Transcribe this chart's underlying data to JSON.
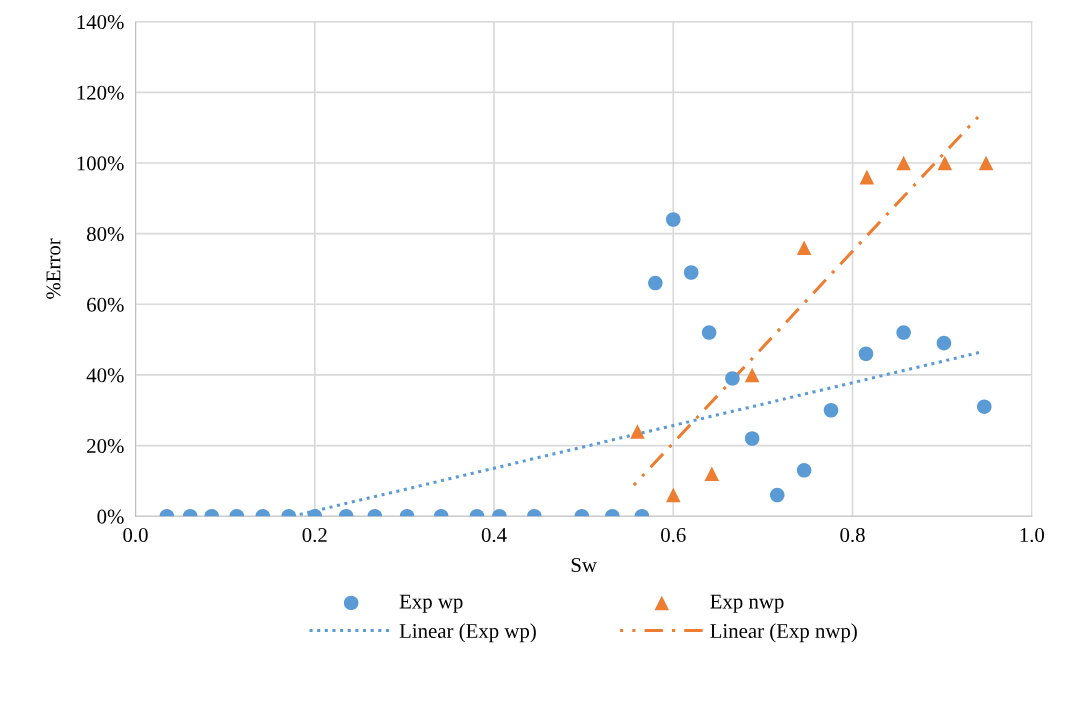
{
  "chart_data": {
    "type": "scatter",
    "xlabel": "Sw",
    "ylabel": "%Error",
    "xlim": [
      0,
      1
    ],
    "xticks": [
      {
        "value": 0,
        "label": "0.0"
      },
      {
        "value": 0.2,
        "label": "0.2"
      },
      {
        "value": 0.4,
        "label": "0.4"
      },
      {
        "value": 0.6,
        "label": "0.6"
      },
      {
        "value": 0.8,
        "label": "0.8"
      },
      {
        "value": 1,
        "label": "1.0"
      }
    ],
    "ylim": [
      0,
      140
    ],
    "yticks": [
      {
        "value": 0,
        "label": "0%"
      },
      {
        "value": 20,
        "label": "20%"
      },
      {
        "value": 40,
        "label": "40%"
      },
      {
        "value": 60,
        "label": "60%"
      },
      {
        "value": 80,
        "label": "80%"
      },
      {
        "value": 100,
        "label": "100%"
      },
      {
        "value": 120,
        "label": "120%"
      },
      {
        "value": 140,
        "label": "140%"
      }
    ],
    "grid": true,
    "legend": "bottom",
    "series": [
      {
        "name": "Exp wp",
        "marker": "circle",
        "color": "#5b9bd5",
        "x": [
          0.035,
          0.061,
          0.085,
          0.113,
          0.142,
          0.171,
          0.2,
          0.235,
          0.267,
          0.303,
          0.341,
          0.381,
          0.406,
          0.445,
          0.498,
          0.532,
          0.565,
          0.58,
          0.6,
          0.62,
          0.64,
          0.666,
          0.688,
          0.716,
          0.746,
          0.776,
          0.815,
          0.857,
          0.902,
          0.947
        ],
        "values": [
          0,
          0,
          0,
          0,
          0,
          0,
          0,
          0,
          0,
          0,
          0,
          0,
          0,
          0,
          0,
          0,
          0,
          66,
          84,
          69,
          52,
          39,
          22,
          6,
          13,
          30,
          46,
          52,
          49,
          31
        ]
      },
      {
        "name": "Exp nwp",
        "marker": "triangle",
        "color": "#ed7d31",
        "x": [
          0.56,
          0.6,
          0.643,
          0.688,
          0.746,
          0.816,
          0.857,
          0.903,
          0.949
        ],
        "values": [
          24,
          6,
          12,
          40,
          76,
          96,
          100,
          100,
          100
        ]
      },
      {
        "name": "Linear (Exp wp)",
        "type": "line",
        "line_style": "dotted",
        "color": "#5b9bd5",
        "x": [
          0.175,
          0.944
        ],
        "values": [
          0,
          46.5
        ]
      },
      {
        "name": "Linear (Exp nwp)",
        "type": "line",
        "line_style": "dashdot",
        "color": "#ed7d31",
        "x": [
          0.556,
          0.94
        ],
        "values": [
          8.8,
          113
        ]
      }
    ]
  }
}
